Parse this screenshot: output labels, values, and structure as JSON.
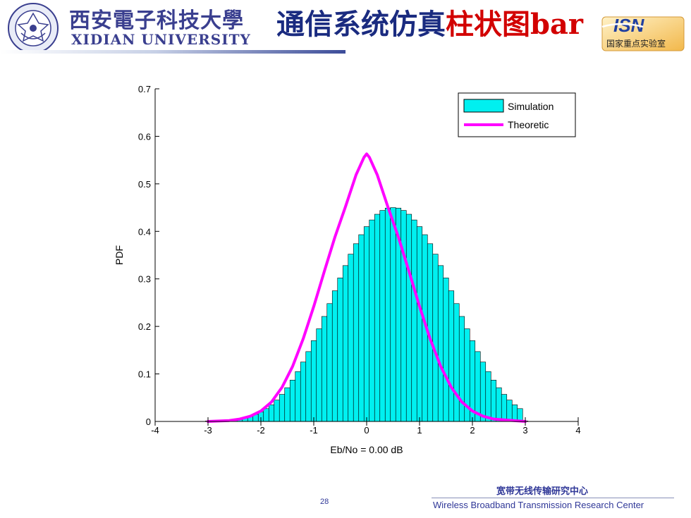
{
  "header": {
    "university_cn": "西安電子科技大學",
    "university_en": "XIDIAN UNIVERSITY",
    "title_main": "通信系统仿真",
    "title_highlight": "柱状图bar",
    "lab_logo_text": "ISN",
    "lab_name": "国家重点实验室"
  },
  "footer": {
    "center_cn": "宽带无线传输研究中心",
    "center_en": "Wireless Broadband Transmission Research Center",
    "page_number": "28"
  },
  "colors": {
    "bar_fill": "#00f0f0",
    "curve": "#ff00ff",
    "title_blue": "#1a2b80",
    "title_red": "#d20000",
    "brand_blue": "#3a3f8f"
  },
  "chart_data": {
    "type": "bar",
    "title": "",
    "xlabel": "Eb/No = 0.00 dB",
    "ylabel": "PDF",
    "xlim": [
      -4,
      4
    ],
    "ylim": [
      0,
      0.7
    ],
    "xticks": [
      "-4",
      "-3",
      "-2",
      "-1",
      "0",
      "1",
      "2",
      "3",
      "4"
    ],
    "yticks": [
      "0",
      "0.1",
      "0.2",
      "0.3",
      "0.4",
      "0.5",
      "0.6",
      "0.7"
    ],
    "grid": false,
    "legend_position": "top-right",
    "bin_width": 0.1,
    "bin_centers": [
      -3.0,
      -2.9,
      -2.8,
      -2.7,
      -2.6,
      -2.5,
      -2.4,
      -2.3,
      -2.2,
      -2.1,
      -2.0,
      -1.9,
      -1.8,
      -1.7,
      -1.6,
      -1.5,
      -1.4,
      -1.3,
      -1.2,
      -1.1,
      -1.0,
      -0.9,
      -0.8,
      -0.7,
      -0.6,
      -0.5,
      -0.4,
      -0.3,
      -0.2,
      -0.1,
      0.0,
      0.1,
      0.2,
      0.3,
      0.4,
      0.5,
      0.6,
      0.7,
      0.8,
      0.9,
      1.0,
      1.1,
      1.2,
      1.3,
      1.4,
      1.5,
      1.6,
      1.7,
      1.8,
      1.9,
      2.0,
      2.1,
      2.2,
      2.3,
      2.4,
      2.5,
      2.6,
      2.7,
      2.8,
      2.9,
      3.0,
      4.0
    ],
    "series": [
      {
        "name": "Simulation",
        "kind": "bar",
        "values": [
          0.001,
          0.001,
          0.002,
          0.002,
          0.003,
          0.004,
          0.006,
          0.008,
          0.011,
          0.015,
          0.02,
          0.027,
          0.035,
          0.045,
          0.057,
          0.071,
          0.087,
          0.105,
          0.125,
          0.147,
          0.17,
          0.195,
          0.221,
          0.248,
          0.275,
          0.302,
          0.328,
          0.352,
          0.374,
          0.393,
          0.41,
          0.424,
          0.436,
          0.444,
          0.449,
          0.45,
          0.449,
          0.444,
          0.436,
          0.424,
          0.41,
          0.393,
          0.374,
          0.352,
          0.328,
          0.302,
          0.275,
          0.248,
          0.221,
          0.195,
          0.17,
          0.147,
          0.125,
          0.105,
          0.087,
          0.071,
          0.057,
          0.045,
          0.035,
          0.027,
          0.001,
          0.0
        ]
      },
      {
        "name": "Theoretic",
        "kind": "line",
        "x": [
          -3.0,
          -2.6,
          -2.4,
          -2.2,
          -2.0,
          -1.8,
          -1.6,
          -1.4,
          -1.2,
          -1.0,
          -0.8,
          -0.6,
          -0.4,
          -0.2,
          -0.05,
          0.0,
          0.05,
          0.2,
          0.4,
          0.6,
          0.8,
          1.0,
          1.2,
          1.4,
          1.6,
          1.8,
          2.0,
          2.2,
          2.4,
          3.0
        ],
        "y": [
          0.0,
          0.002,
          0.005,
          0.011,
          0.022,
          0.041,
          0.072,
          0.116,
          0.174,
          0.242,
          0.316,
          0.388,
          0.452,
          0.519,
          0.556,
          0.563,
          0.556,
          0.519,
          0.452,
          0.388,
          0.316,
          0.242,
          0.174,
          0.116,
          0.072,
          0.041,
          0.022,
          0.011,
          0.005,
          0.0
        ]
      }
    ]
  }
}
